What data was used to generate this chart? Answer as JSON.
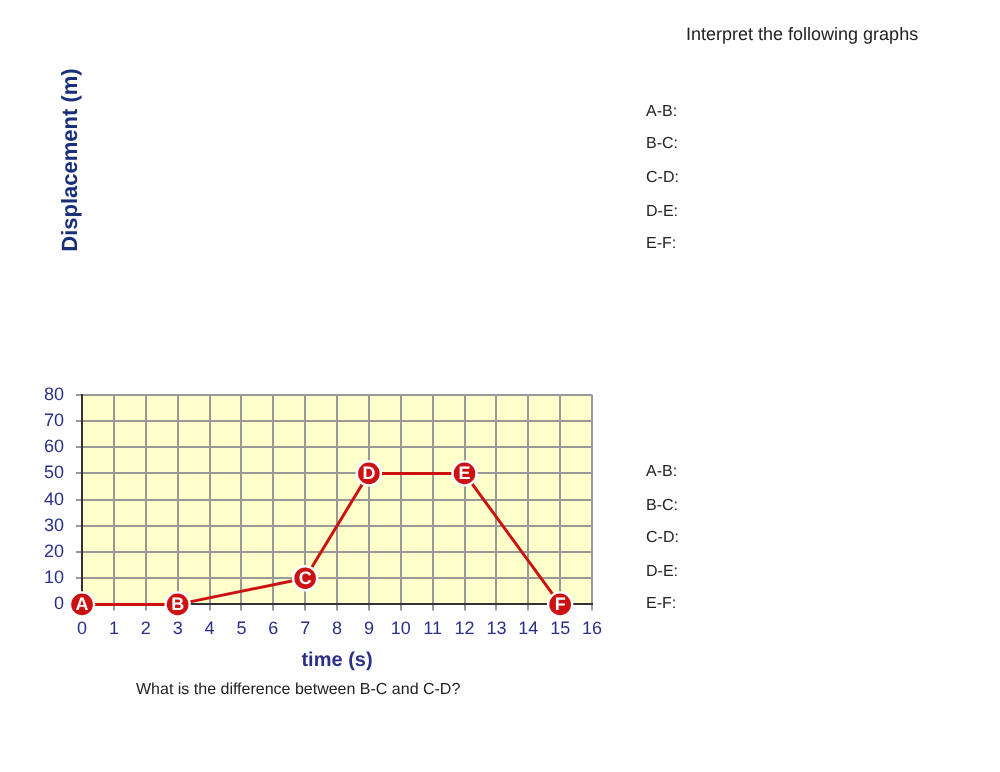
{
  "chart_data": {
    "type": "line",
    "xlabel": "time (s)",
    "x": [
      0,
      3,
      7,
      9,
      12,
      15
    ],
    "series": [
      {
        "color": "#cc1111",
        "values": [
          0,
          0,
          10,
          50,
          50,
          0
        ]
      }
    ],
    "xlim": [
      0,
      16
    ],
    "xticks": [
      0,
      1,
      2,
      3,
      4,
      5,
      6,
      7,
      8,
      9,
      10,
      11,
      12,
      13,
      14,
      15,
      16
    ],
    "ylim": [
      0,
      80
    ],
    "yticks": [
      0,
      10,
      20,
      30,
      40,
      50,
      60,
      70,
      80
    ],
    "grid": true,
    "legend": false,
    "marker": "circle",
    "line_style": "solid",
    "annotations": [
      "Interpret the following graphs",
      "A-B:",
      "B-C:",
      "C-D:",
      "D-E:",
      "E-F:",
      "A-B:",
      "B-C:",
      "C-D:",
      "D-E:",
      "E-F:",
      "What is the difference between B-C and C-D?",
      "Displacement (m)",
      {
        "text": "A",
        "x": 0,
        "y": 0
      },
      {
        "text": "B",
        "x": 3,
        "y": 0
      },
      {
        "text": "C",
        "x": 7,
        "y": 10
      },
      {
        "text": "D",
        "x": 9,
        "y": 50
      },
      {
        "text": "E",
        "x": 12,
        "y": 50
      },
      {
        "text": "F",
        "x": 15,
        "y": 0
      }
    ]
  }
}
